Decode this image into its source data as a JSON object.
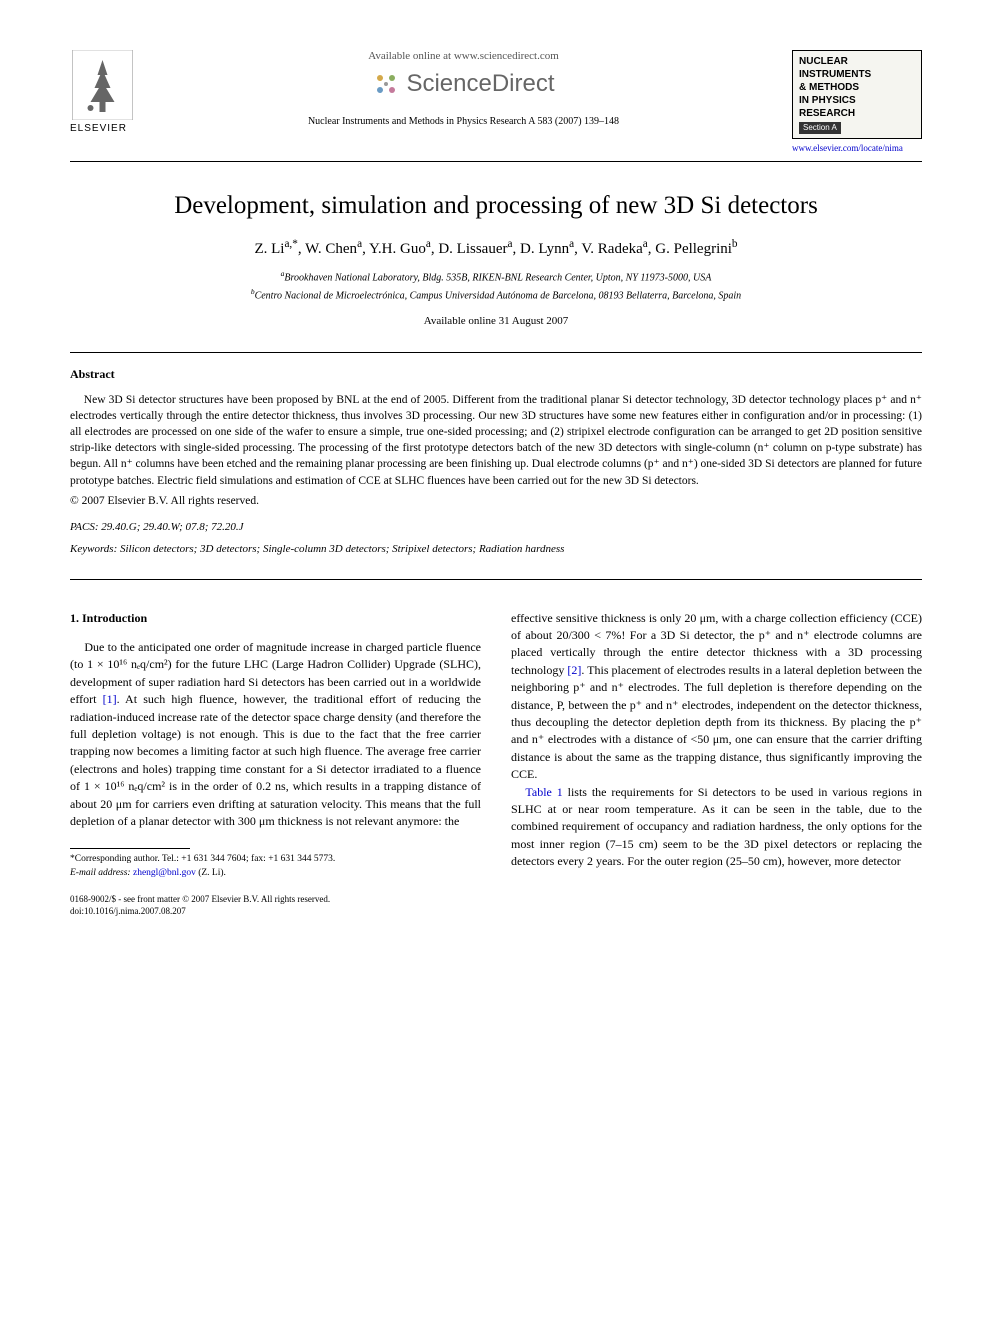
{
  "header": {
    "elsevier_label": "ELSEVIER",
    "available_text": "Available online at www.sciencedirect.com",
    "sd_text": "ScienceDirect",
    "journal_ref": "Nuclear Instruments and Methods in Physics Research A 583 (2007) 139–148",
    "journal_box_lines": [
      "NUCLEAR",
      "INSTRUMENTS",
      "& METHODS",
      "IN PHYSICS",
      "RESEARCH"
    ],
    "journal_section": "Section A",
    "journal_link": "www.elsevier.com/locate/nima"
  },
  "title": "Development, simulation and processing of new 3D Si detectors",
  "authors_html": "Z. Li<sup>a,*</sup>, W. Chen<sup>a</sup>, Y.H. Guo<sup>a</sup>, D. Lissauer<sup>a</sup>, D. Lynn<sup>a</sup>, V. Radeka<sup>a</sup>, G. Pellegrini<sup>b</sup>",
  "affiliations": {
    "a": "Brookhaven National Laboratory, Bldg. 535B, RIKEN-BNL Research Center, Upton, NY 11973-5000, USA",
    "b": "Centro Nacional de Microelectrónica, Campus Universidad Autónoma de Barcelona, 08193 Bellaterra, Barcelona, Spain"
  },
  "date_available": "Available online 31 August 2007",
  "abstract": {
    "heading": "Abstract",
    "text": "New 3D Si detector structures have been proposed by BNL at the end of 2005. Different from the traditional planar Si detector technology, 3D detector technology places p⁺ and n⁺ electrodes vertically through the entire detector thickness, thus involves 3D processing. Our new 3D structures have some new features either in configuration and/or in processing: (1) all electrodes are processed on one side of the wafer to ensure a simple, true one-sided processing; and (2) stripixel electrode configuration can be arranged to get 2D position sensitive strip-like detectors with single-sided processing. The processing of the first prototype detectors batch of the new 3D detectors with single-column (n⁺ column on p-type substrate) has begun. All n⁺ columns have been etched and the remaining planar processing are been finishing up. Dual electrode columns (p⁺ and n⁺) one-sided 3D Si detectors are planned for future prototype batches. Electric field simulations and estimation of CCE at SLHC fluences have been carried out for the new 3D Si detectors.",
    "copyright": "© 2007 Elsevier B.V. All rights reserved."
  },
  "pacs": "PACS: 29.40.G; 29.40.W; 07.8; 72.20.J",
  "keywords": "Keywords: Silicon detectors; 3D detectors; Single-column 3D detectors; Stripixel detectors; Radiation hardness",
  "body": {
    "section_number": "1.",
    "section_title": "Introduction",
    "col1_para": "Due to the anticipated one order of magnitude increase in charged particle fluence (to 1 × 10¹⁶ nₑq/cm²) for the future LHC (Large Hadron Collider) Upgrade (SLHC), development of super radiation hard Si detectors has been carried out in a worldwide effort [1]. At such high fluence, however, the traditional effort of reducing the radiation-induced increase rate of the detector space charge density (and therefore the full depletion voltage) is not enough. This is due to the fact that the free carrier trapping now becomes a limiting factor at such high fluence. The average free carrier (electrons and holes) trapping time constant for a Si detector irradiated to a fluence of 1 × 10¹⁶ nₑq/cm² is in the order of 0.2 ns, which results in a trapping distance of about 20 μm for carriers even drifting at saturation velocity. This means that the full depletion of a planar detector with 300 μm thickness is not relevant anymore: the",
    "col2_para1": "effective sensitive thickness is only 20 μm, with a charge collection efficiency (CCE) of about 20/300 < 7%! For a 3D Si detector, the p⁺ and n⁺ electrode columns are placed vertically through the entire detector thickness with a 3D processing technology [2]. This placement of electrodes results in a lateral depletion between the neighboring p⁺ and n⁺ electrodes. The full depletion is therefore depending on the distance, P, between the p⁺ and n⁺ electrodes, independent on the detector thickness, thus decoupling the detector depletion depth from its thickness. By placing the p⁺ and n⁺ electrodes with a distance of <50 μm, one can ensure that the carrier drifting distance is about the same as the trapping distance, thus significantly improving the CCE.",
    "col2_para2": "Table 1 lists the requirements for Si detectors to be used in various regions in SLHC at or near room temperature. As it can be seen in the table, due to the combined requirement of occupancy and radiation hardness, the only options for the most inner region (7–15 cm) seem to be the 3D pixel detectors or replacing the detectors every 2 years. For the outer region (25–50 cm), however, more detector"
  },
  "footnotes": {
    "corresponding": "*Corresponding author. Tel.: +1 631 344 7604; fax: +1 631 344 5773.",
    "email_label": "E-mail address:",
    "email": "zhengl@bnl.gov",
    "email_who": "(Z. Li)."
  },
  "footer": {
    "line1": "0168-9002/$ - see front matter © 2007 Elsevier B.V. All rights reserved.",
    "line2": "doi:10.1016/j.nima.2007.08.207"
  },
  "colors": {
    "text": "#000000",
    "link": "#0000cc",
    "sd_gray": "#666666",
    "background": "#ffffff",
    "box_bg": "#f5f5f0"
  },
  "fonts": {
    "body_family": "Georgia, Times New Roman, serif",
    "title_size_pt": 19,
    "authors_size_pt": 11,
    "body_size_pt": 9,
    "abstract_size_pt": 8.5
  }
}
